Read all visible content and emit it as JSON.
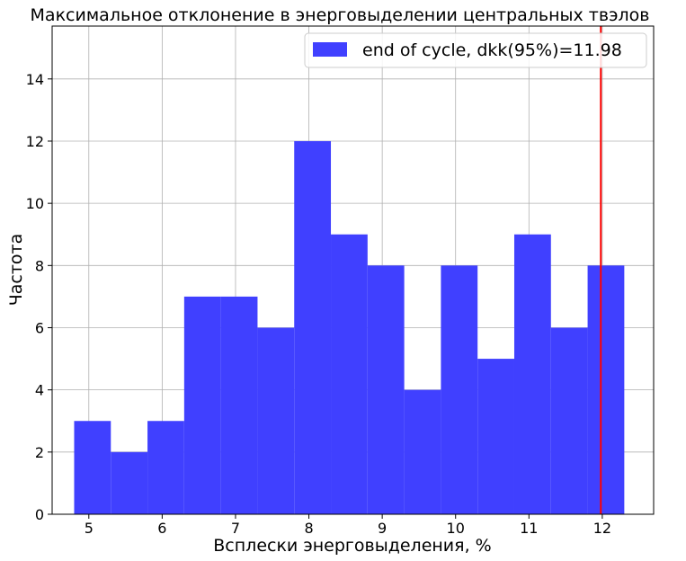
{
  "chart_data": {
    "type": "bar",
    "title": "Максимальное отклонение в энерговыделении центральных твэлов",
    "xlabel": "Всплески энерговыделения, %",
    "ylabel": "Частота",
    "xlim": [
      4.5,
      12.7
    ],
    "ylim": [
      0,
      15.7
    ],
    "x_ticks": [
      5,
      6,
      7,
      8,
      9,
      10,
      11,
      12
    ],
    "y_ticks": [
      0,
      2,
      4,
      6,
      8,
      10,
      12,
      14
    ],
    "grid": true,
    "bins": [
      {
        "start": 4.8,
        "end": 5.3,
        "count": 3
      },
      {
        "start": 5.3,
        "end": 5.8,
        "count": 2
      },
      {
        "start": 5.8,
        "end": 6.3,
        "count": 3
      },
      {
        "start": 6.3,
        "end": 6.8,
        "count": 7
      },
      {
        "start": 6.8,
        "end": 7.3,
        "count": 7
      },
      {
        "start": 7.3,
        "end": 7.8,
        "count": 6
      },
      {
        "start": 7.8,
        "end": 8.3,
        "count": 12
      },
      {
        "start": 8.3,
        "end": 8.8,
        "count": 9
      },
      {
        "start": 8.8,
        "end": 9.3,
        "count": 8
      },
      {
        "start": 9.3,
        "end": 9.8,
        "count": 4
      },
      {
        "start": 9.8,
        "end": 10.3,
        "count": 8
      },
      {
        "start": 10.3,
        "end": 10.8,
        "count": 5
      },
      {
        "start": 10.8,
        "end": 11.3,
        "count": 9
      },
      {
        "start": 11.3,
        "end": 11.8,
        "count": 6
      },
      {
        "start": 11.8,
        "end": 12.3,
        "count": 8
      }
    ],
    "bar_color": "#4040ff",
    "threshold_line": {
      "x": 11.98,
      "color": "#ff0000"
    },
    "legend": {
      "label": "end of cycle, dkk(95%)=11.98",
      "position": "top-right"
    }
  }
}
